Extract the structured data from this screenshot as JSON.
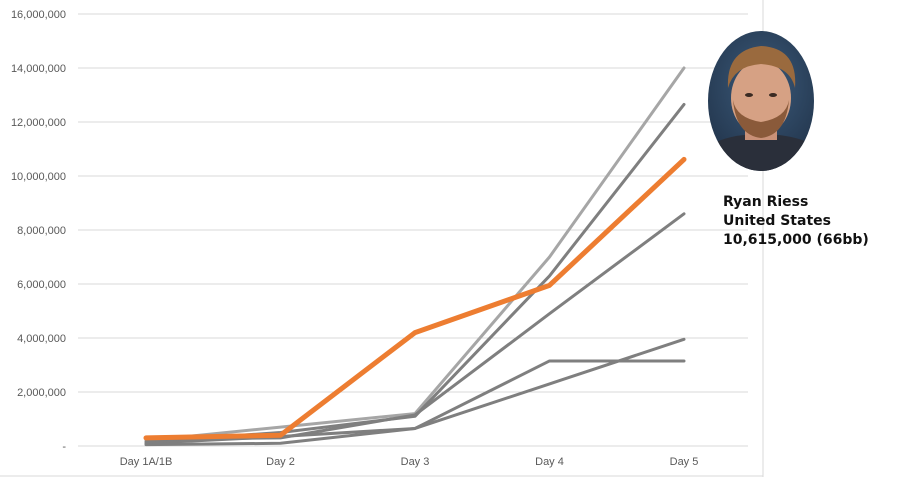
{
  "chart_data": {
    "type": "line",
    "title": "",
    "xlabel": "",
    "ylabel": "",
    "categories": [
      "Day 1A/1B",
      "Day 2",
      "Day 3",
      "Day 4",
      "Day 5"
    ],
    "y_ticks": [
      {
        "value": 0,
        "label": "-"
      },
      {
        "value": 2000000,
        "label": "2,000,000"
      },
      {
        "value": 4000000,
        "label": "4,000,000"
      },
      {
        "value": 6000000,
        "label": "6,000,000"
      },
      {
        "value": 8000000,
        "label": "8,000,000"
      },
      {
        "value": 10000000,
        "label": "10,000,000"
      },
      {
        "value": 12000000,
        "label": "12,000,000"
      },
      {
        "value": 14000000,
        "label": "14,000,000"
      },
      {
        "value": 16000000,
        "label": "16,000,000"
      }
    ],
    "ylim": [
      0,
      16000000
    ],
    "grid": true,
    "legend": "none",
    "series": [
      {
        "values": [
          200000,
          700000,
          1200000,
          7000000,
          14000000
        ],
        "color": "#a6a6a6",
        "highlight": false
      },
      {
        "values": [
          150000,
          500000,
          1100000,
          6300000,
          12650000
        ],
        "color": "#7f7f7f",
        "highlight": false
      },
      {
        "values": [
          250000,
          300000,
          1150000,
          4900000,
          8600000
        ],
        "color": "#7f7f7f",
        "highlight": false
      },
      {
        "values": [
          100000,
          350000,
          650000,
          2300000,
          3950000
        ],
        "color": "#7f7f7f",
        "highlight": false
      },
      {
        "values": [
          50000,
          100000,
          650000,
          3150000,
          3150000
        ],
        "color": "#7f7f7f",
        "highlight": false
      },
      {
        "values": [
          300000,
          400000,
          4200000,
          5950000,
          10615000
        ],
        "color": "#ed7d31",
        "highlight": true
      }
    ]
  },
  "player": {
    "name": "Ryan Riess",
    "country": "United States",
    "stack": "10,615,000 (66bb)"
  },
  "colors": {
    "grid": "#d9d9d9",
    "tick_text": "#595959",
    "highlight": "#ed7d31"
  }
}
